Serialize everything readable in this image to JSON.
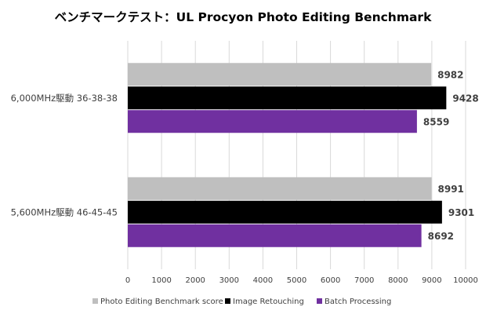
{
  "chart_data": {
    "type": "bar",
    "orientation": "horizontal",
    "title": "ベンチマークテスト：UL Procyon Photo Editing Benchmark",
    "categories": [
      "6,000MHz駆動 36-38-38",
      "5,600MHz駆動 46-45-45"
    ],
    "series": [
      {
        "name": "Photo Editing Benchmark score",
        "color": "#bfbfbf",
        "values": [
          8982,
          8991
        ]
      },
      {
        "name": "Image Retouching",
        "color": "#000000",
        "values": [
          9428,
          9301
        ]
      },
      {
        "name": "Batch Processing",
        "color": "#7030a0",
        "values": [
          8559,
          8692
        ]
      }
    ],
    "xlim": [
      0,
      10000
    ],
    "x_ticks": [
      0,
      1000,
      2000,
      3000,
      4000,
      5000,
      6000,
      7000,
      8000,
      9000,
      10000
    ],
    "grid": true,
    "legend_position": "bottom"
  }
}
